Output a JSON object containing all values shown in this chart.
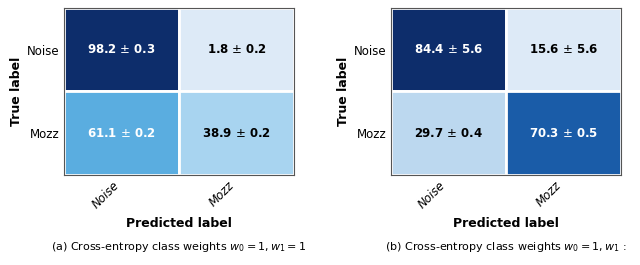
{
  "chart_a": {
    "matrix": [
      [
        98.2,
        1.8
      ],
      [
        61.1,
        38.9
      ]
    ],
    "errors": [
      [
        0.3,
        0.2
      ],
      [
        0.2,
        0.2
      ]
    ],
    "colors": [
      [
        "#0d2d6b",
        "#ddeaf7"
      ],
      [
        "#5aade0",
        "#a8d4f0"
      ]
    ],
    "text_colors": [
      [
        "white",
        "black"
      ],
      [
        "white",
        "black"
      ]
    ],
    "xlabel": "Predicted label",
    "ylabel": "True label",
    "xticklabels": [
      "Noise",
      "Mozz"
    ],
    "yticklabels": [
      "Noise",
      "Mozz"
    ],
    "caption": "(a) Cross-entropy class weights $w_0 = 1, w_1 = 1$"
  },
  "chart_b": {
    "matrix": [
      [
        84.4,
        15.6
      ],
      [
        29.7,
        70.3
      ]
    ],
    "errors": [
      [
        5.6,
        5.6
      ],
      [
        0.4,
        0.5
      ]
    ],
    "colors": [
      [
        "#0d2d6b",
        "#ddeaf7"
      ],
      [
        "#bcd8ef",
        "#1a5ca8"
      ]
    ],
    "text_colors": [
      [
        "white",
        "black"
      ],
      [
        "black",
        "white"
      ]
    ],
    "xlabel": "Predicted label",
    "ylabel": "True label",
    "xticklabels": [
      "Noise",
      "Mozz"
    ],
    "yticklabels": [
      "Noise",
      "Mozz"
    ],
    "caption": "(b) Cross-entropy class weights $w_0 = 1, w_1$ :"
  },
  "figsize": [
    6.4,
    2.65
  ],
  "dpi": 100,
  "cell_fontsize": 8.5,
  "tick_fontsize": 8.5,
  "label_fontsize": 9,
  "caption_fontsize": 8
}
